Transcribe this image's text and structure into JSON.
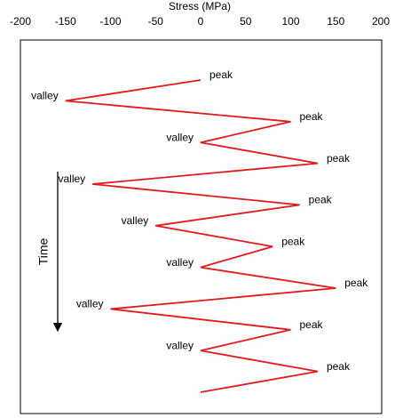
{
  "chart_data": {
    "type": "line",
    "orientation": "vertical",
    "x_label": "Stress (MPa)",
    "y_label": "Time",
    "xlim": [
      -200,
      200
    ],
    "xticks": [
      -200,
      -150,
      -100,
      -50,
      0,
      50,
      100,
      150,
      200
    ],
    "categories": [
      "peak",
      "valley",
      "peak",
      "valley",
      "peak",
      "valley",
      "peak",
      "valley",
      "peak",
      "valley",
      "peak",
      "valley",
      "peak",
      "valley",
      "peak",
      null
    ],
    "values": [
      0,
      -150,
      100,
      0,
      130,
      -120,
      110,
      -50,
      80,
      0,
      150,
      -100,
      100,
      0,
      130,
      0
    ],
    "color": "#e31a1c"
  }
}
